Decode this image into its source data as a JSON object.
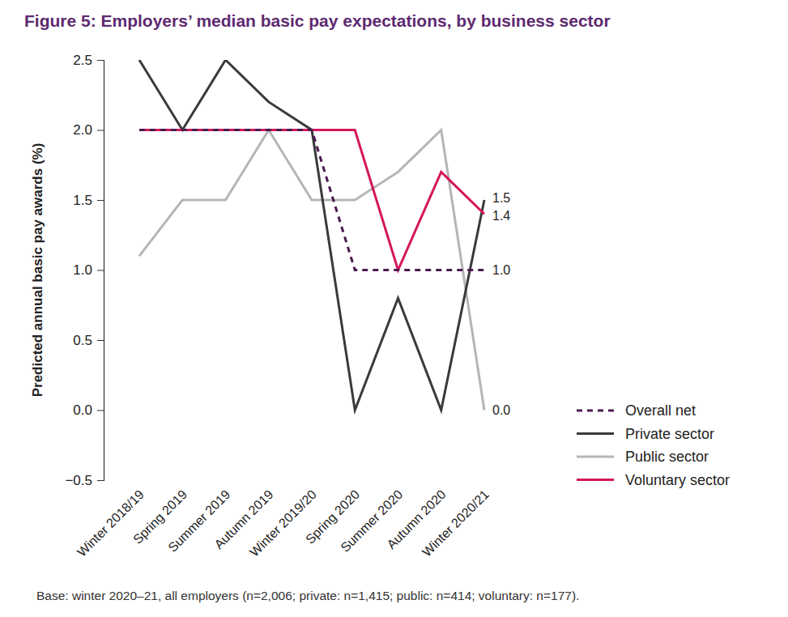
{
  "chart_data": {
    "type": "line",
    "title": "Figure 5: Employers’ median basic pay expectations, by business sector",
    "y_label": "Predicted annual basic pay awards (%)",
    "footnote": "Base: winter 2020–21, all employers (n=2,006; private: n=1,415; public: n=414; voluntary: n=177).",
    "categories": [
      "Winter 2018/19",
      "Spring 2019",
      "Summer 2019",
      "Autumn 2019",
      "Winter 2019/20",
      "Spring 2020",
      "Summer 2020",
      "Autumn 2020",
      "Winter 2020/21"
    ],
    "series": [
      {
        "name": "Overall net",
        "color": "#4a1a4e",
        "line_style": "dashed",
        "values": [
          2.0,
          2.0,
          2.0,
          2.0,
          2.0,
          1.0,
          1.0,
          1.0,
          1.0
        ],
        "value_labels": [
          null,
          null,
          null,
          null,
          null,
          null,
          null,
          null,
          "1.0"
        ]
      },
      {
        "name": "Private sector",
        "color": "#3a3a3a",
        "line_style": "solid",
        "values": [
          2.5,
          2.0,
          2.5,
          2.2,
          2.0,
          0.0,
          0.8,
          0.0,
          1.5
        ],
        "value_labels": [
          null,
          null,
          null,
          null,
          null,
          null,
          null,
          null,
          "1.5"
        ]
      },
      {
        "name": "Public sector",
        "color": "#b5b5b5",
        "line_style": "solid",
        "values": [
          1.1,
          1.5,
          1.5,
          2.0,
          1.5,
          1.5,
          1.7,
          2.0,
          0.0
        ],
        "value_labels": [
          null,
          null,
          null,
          null,
          null,
          null,
          null,
          null,
          "0.0"
        ]
      },
      {
        "name": "Voluntary sector",
        "color": "#d4175c",
        "line_style": "solid",
        "values": [
          2.0,
          2.0,
          2.0,
          2.0,
          2.0,
          2.0,
          1.0,
          1.7,
          1.4
        ],
        "value_labels": [
          null,
          null,
          null,
          null,
          null,
          null,
          null,
          null,
          "1.4"
        ]
      }
    ],
    "ylim": [
      -0.5,
      2.5
    ],
    "yticks": [
      {
        "value": -0.5,
        "label": "−0.5"
      },
      {
        "value": 0,
        "label": "0.0"
      },
      0.5,
      {
        "value": 1,
        "label": "1.0"
      },
      1.5,
      {
        "value": 2,
        "label": "2.0"
      },
      2.5
    ],
    "grid": false,
    "legend": "right",
    "data_labels": true
  }
}
